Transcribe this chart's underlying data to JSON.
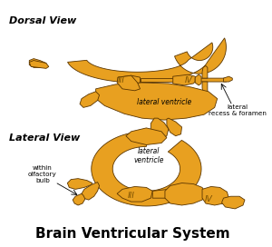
{
  "title": "Brain Ventricular System",
  "title_fontsize": 11,
  "title_fontweight": "bold",
  "dorsal_label": "Dorsal View",
  "lateral_label": "Lateral View",
  "label_fontsize": 8,
  "label_fontweight": "bold",
  "fill_color": "#E8A020",
  "edge_color": "#5A3500",
  "bg_color": "#FFFFFF",
  "annotation_fontsize": 5.5,
  "roman_fontsize": 6.5,
  "roman_color": "#7A5000",
  "annotation_color": "#000000"
}
